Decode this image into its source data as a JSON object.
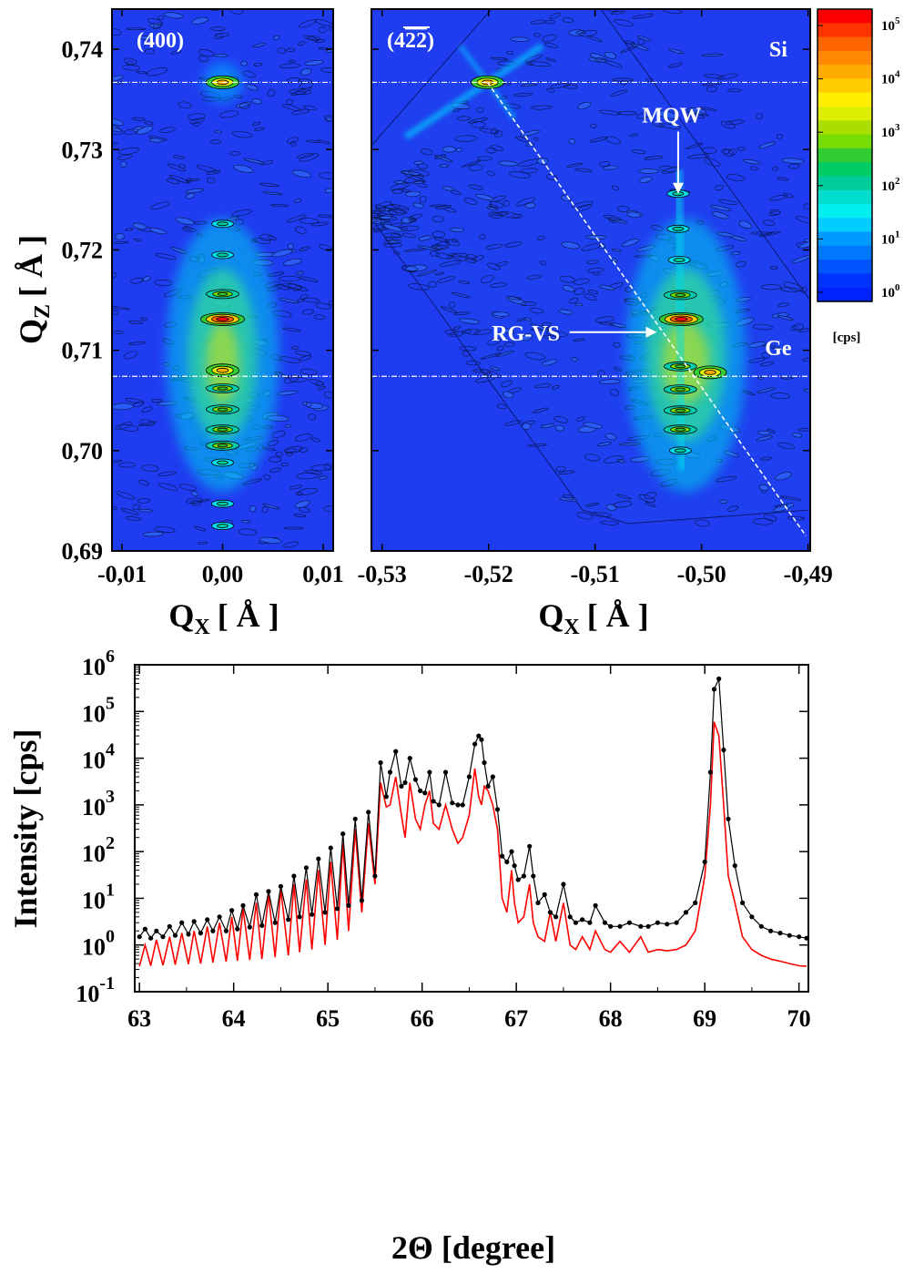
{
  "chart_data": [
    {
      "type": "heatmap",
      "panel_label": "(400)",
      "xlabel": "Q",
      "xlabel_sub": "X",
      "xlabel_unit": "[ Å ]",
      "ylabel": "Q",
      "ylabel_sub": "Z",
      "ylabel_unit": "[ Å ]",
      "xlim": [
        -0.011,
        0.011
      ],
      "ylim": [
        0.69,
        0.744
      ],
      "xticks": [
        "-0,01",
        "0,00",
        "0,01"
      ],
      "xtick_values": [
        -0.01,
        0.0,
        0.01
      ],
      "yticks": [
        "0,69",
        "0,70",
        "0,71",
        "0,72",
        "0,73",
        "0,74"
      ],
      "ytick_values": [
        0.69,
        0.7,
        0.71,
        0.72,
        0.73,
        0.74
      ],
      "reference_lines": [
        {
          "name": "Si",
          "qz": 0.7367
        },
        {
          "name": "Ge",
          "qz": 0.7074
        }
      ],
      "peaks": [
        {
          "qx": 0.0,
          "qz": 0.7367,
          "level": "high"
        },
        {
          "qx": 0.0,
          "qz": 0.7226,
          "level": "low"
        },
        {
          "qx": 0.0,
          "qz": 0.7195,
          "level": "low"
        },
        {
          "qx": 0.0,
          "qz": 0.7156,
          "level": "mid"
        },
        {
          "qx": 0.0,
          "qz": 0.7131,
          "level": "max"
        },
        {
          "qx": 0.0,
          "qz": 0.708,
          "level": "high"
        },
        {
          "qx": 0.0,
          "qz": 0.7062,
          "level": "mid"
        },
        {
          "qx": 0.0,
          "qz": 0.7041,
          "level": "mid"
        },
        {
          "qx": 0.0,
          "qz": 0.7021,
          "level": "mid"
        },
        {
          "qx": 0.0,
          "qz": 0.7005,
          "level": "mid"
        },
        {
          "qx": 0.0,
          "qz": 0.6988,
          "level": "low"
        },
        {
          "qx": 0.0,
          "qz": 0.6947,
          "level": "low"
        },
        {
          "qx": 0.0,
          "qz": 0.6925,
          "level": "low"
        }
      ]
    },
    {
      "type": "heatmap",
      "panel_label": "(422)",
      "panel_label_plain": "(4",
      "panel_label_bar": "22",
      "panel_label_end": ")",
      "xlabel": "Q",
      "xlabel_sub": "X",
      "xlabel_unit": "[ Å ]",
      "xlim": [
        -0.531,
        -0.4898
      ],
      "ylim": [
        0.69,
        0.744
      ],
      "xticks": [
        "-0,53",
        "-0,52",
        "-0,51",
        "-0,50",
        "-0,49"
      ],
      "xtick_values": [
        -0.53,
        -0.52,
        -0.51,
        -0.5,
        -0.49
      ],
      "reference_lines": [
        {
          "name": "Si",
          "qz": 0.7367
        },
        {
          "name": "Ge",
          "qz": 0.7074
        }
      ],
      "relaxation_line": {
        "from": [
          -0.5201,
          0.7367
        ],
        "to": [
          -0.4902,
          0.6915
        ]
      },
      "annotations": [
        {
          "text": "Si",
          "qx": -0.4928,
          "qz": 0.7393
        },
        {
          "text": "Ge",
          "qx": -0.4928,
          "qz": 0.7095
        },
        {
          "text": "MQW",
          "qx": -0.5028,
          "qz": 0.7327,
          "arrow_to": [
            -0.5022,
            0.7256
          ]
        },
        {
          "text": "RG-VS",
          "qx": -0.5165,
          "qz": 0.7117,
          "arrow_to": [
            -0.5042,
            0.7118
          ]
        }
      ],
      "peaks": [
        {
          "qx": -0.5201,
          "qz": 0.7367,
          "level": "high"
        },
        {
          "qx": -0.5022,
          "qz": 0.7256,
          "level": "low"
        },
        {
          "qx": -0.5022,
          "qz": 0.7221,
          "level": "low"
        },
        {
          "qx": -0.5021,
          "qz": 0.719,
          "level": "low"
        },
        {
          "qx": -0.502,
          "qz": 0.7155,
          "level": "mid"
        },
        {
          "qx": -0.5019,
          "qz": 0.7131,
          "level": "max"
        },
        {
          "qx": -0.4992,
          "qz": 0.7078,
          "level": "high"
        },
        {
          "qx": -0.502,
          "qz": 0.7084,
          "level": "mid"
        },
        {
          "qx": -0.502,
          "qz": 0.7061,
          "level": "mid"
        },
        {
          "qx": -0.502,
          "qz": 0.704,
          "level": "mid"
        },
        {
          "qx": -0.502,
          "qz": 0.7021,
          "level": "mid"
        },
        {
          "qx": -0.502,
          "qz": 0.7,
          "level": "low"
        }
      ],
      "colorbar": {
        "scale": "log",
        "unit": "[cps]",
        "ticks": [
          "10",
          "10",
          "10",
          "10",
          "10",
          "10"
        ],
        "exponents": [
          "5",
          "4",
          "3",
          "2",
          "1",
          "0"
        ],
        "colors": [
          "#ff0000",
          "#ff3300",
          "#ff6600",
          "#ff8800",
          "#ffaa00",
          "#ffcc00",
          "#ffee00",
          "#ddee00",
          "#aadd00",
          "#77dd00",
          "#33cc33",
          "#00cc66",
          "#00cc99",
          "#00ddcc",
          "#00eeee",
          "#00ccff",
          "#0099ff",
          "#0077ff",
          "#0055ff",
          "#0033ff",
          "#0022ff"
        ]
      }
    },
    {
      "type": "line",
      "xlabel": "2Θ [degree]",
      "ylabel": "Intensity [cps]",
      "xlim": [
        62.95,
        70.1
      ],
      "ylim": [
        0.1,
        1000000
      ],
      "yscale": "log",
      "xticks": [
        "63",
        "64",
        "65",
        "66",
        "67",
        "68",
        "69",
        "70"
      ],
      "xtick_values": [
        63,
        64,
        65,
        66,
        67,
        68,
        69,
        70
      ],
      "yticks": [
        "10",
        "10",
        "10",
        "10",
        "10",
        "10",
        "10",
        "10"
      ],
      "ytick_exponents": [
        "-1",
        "0",
        "1",
        "2",
        "3",
        "4",
        "5",
        "6"
      ],
      "ytick_values": [
        0.1,
        1,
        10,
        100,
        1000,
        10000,
        100000,
        1000000
      ],
      "series": [
        {
          "style": "measured",
          "color": "#000000",
          "marker": "dot",
          "x": [
            63.0,
            63.06,
            63.12,
            63.18,
            63.25,
            63.32,
            63.38,
            63.45,
            63.52,
            63.58,
            63.65,
            63.72,
            63.78,
            63.85,
            63.92,
            63.98,
            64.04,
            64.1,
            64.17,
            64.24,
            64.3,
            64.37,
            64.44,
            64.5,
            64.58,
            64.64,
            64.7,
            64.77,
            64.83,
            64.9,
            64.97,
            65.03,
            65.1,
            65.16,
            65.22,
            65.29,
            65.36,
            65.43,
            65.5,
            65.56,
            65.62,
            65.66,
            65.72,
            65.78,
            65.82,
            65.87,
            65.93,
            65.98,
            66.03,
            66.08,
            66.12,
            66.18,
            66.25,
            66.32,
            66.38,
            66.43,
            66.5,
            66.56,
            66.6,
            66.63,
            66.66,
            66.7,
            66.75,
            66.8,
            66.85,
            66.9,
            66.95,
            66.98,
            67.02,
            67.08,
            67.14,
            67.18,
            67.23,
            67.3,
            67.36,
            67.42,
            67.5,
            67.57,
            67.63,
            67.7,
            67.78,
            67.84,
            67.94,
            68.0,
            68.1,
            68.2,
            68.32,
            68.4,
            68.5,
            68.6,
            68.7,
            68.8,
            68.9,
            69.0,
            69.06,
            69.1,
            69.15,
            69.2,
            69.25,
            69.32,
            69.4,
            69.5,
            69.6,
            69.7,
            69.8,
            69.9,
            70.0,
            70.08
          ],
          "y": [
            1.5,
            2.2,
            1.4,
            2.0,
            1.5,
            2.5,
            1.6,
            3.0,
            1.7,
            3.2,
            1.8,
            3.5,
            2.0,
            4.0,
            2.0,
            5.5,
            2.2,
            7.0,
            2.4,
            12.0,
            2.6,
            14.0,
            3.0,
            18.0,
            3.5,
            30.0,
            4.0,
            45.0,
            4.5,
            70.0,
            5.0,
            120.0,
            6.0,
            240.0,
            7.0,
            500.0,
            9.0,
            700.0,
            30.0,
            8000.0,
            1500.0,
            5000.0,
            14000.0,
            2500.0,
            3000.0,
            10000.0,
            3500.0,
            2000.0,
            1800.0,
            5000.0,
            1200.0,
            1000.0,
            5000.0,
            1100.0,
            1000.0,
            1000.0,
            4000.0,
            20000.0,
            30000.0,
            25000.0,
            8000.0,
            2500.0,
            4000.0,
            800.0,
            80.0,
            60.0,
            100.0,
            50.0,
            25.0,
            30.0,
            130.0,
            30.0,
            8.0,
            12.0,
            5.0,
            4.0,
            20.0,
            4.0,
            3.0,
            3.5,
            3.0,
            7.0,
            3.0,
            2.5,
            2.5,
            3.0,
            2.5,
            2.5,
            3.0,
            2.8,
            3.0,
            5.0,
            8.0,
            60.0,
            5000.0,
            300000.0,
            500000.0,
            15000.0,
            500.0,
            50.0,
            8.0,
            4.0,
            2.5,
            2.0,
            1.8,
            1.6,
            1.5,
            1.4
          ]
        },
        {
          "style": "simulated",
          "color": "#ff0000",
          "x": [
            63.0,
            63.06,
            63.12,
            63.18,
            63.25,
            63.32,
            63.38,
            63.45,
            63.52,
            63.58,
            63.65,
            63.72,
            63.78,
            63.85,
            63.92,
            63.98,
            64.04,
            64.1,
            64.17,
            64.24,
            64.3,
            64.37,
            64.44,
            64.5,
            64.58,
            64.64,
            64.7,
            64.77,
            64.83,
            64.9,
            64.97,
            65.03,
            65.1,
            65.16,
            65.22,
            65.29,
            65.36,
            65.43,
            65.5,
            65.56,
            65.62,
            65.66,
            65.72,
            65.78,
            65.82,
            65.87,
            65.93,
            65.98,
            66.03,
            66.08,
            66.12,
            66.18,
            66.25,
            66.32,
            66.38,
            66.43,
            66.5,
            66.56,
            66.6,
            66.63,
            66.66,
            66.7,
            66.75,
            66.8,
            66.85,
            66.9,
            66.95,
            66.98,
            67.02,
            67.08,
            67.14,
            67.18,
            67.23,
            67.3,
            67.36,
            67.42,
            67.5,
            67.57,
            67.63,
            67.7,
            67.78,
            67.84,
            67.94,
            68.0,
            68.1,
            68.2,
            68.32,
            68.4,
            68.5,
            68.6,
            68.7,
            68.8,
            68.9,
            69.0,
            69.06,
            69.1,
            69.15,
            69.2,
            69.25,
            69.32,
            69.4,
            69.5,
            69.6,
            69.7,
            69.8,
            69.9,
            70.0,
            70.08
          ],
          "y": [
            0.35,
            1.0,
            0.36,
            1.3,
            0.37,
            1.5,
            0.38,
            1.8,
            0.39,
            2.0,
            0.4,
            2.5,
            0.42,
            3.0,
            0.44,
            4.0,
            0.46,
            6.0,
            0.48,
            8.0,
            0.5,
            12.0,
            0.55,
            16.0,
            0.6,
            20.0,
            0.7,
            25.0,
            0.8,
            40.0,
            1.0,
            60.0,
            1.3,
            150.0,
            2.0,
            300.0,
            5.0,
            400.0,
            20.0,
            3000.0,
            900.0,
            1000.0,
            4000.0,
            600.0,
            200.0,
            3000.0,
            500.0,
            300.0,
            1000.0,
            2000.0,
            400.0,
            300.0,
            1000.0,
            300.0,
            150.0,
            200.0,
            600.0,
            6000.0,
            1500.0,
            1000.0,
            2500.0,
            2000.0,
            1000.0,
            300.0,
            10.0,
            5.0,
            40.0,
            8.0,
            3.0,
            4.0,
            20.0,
            3.0,
            1.5,
            1.2,
            5.0,
            1.2,
            8.0,
            1.0,
            0.8,
            1.5,
            0.8,
            2.0,
            0.8,
            0.7,
            1.2,
            0.7,
            1.5,
            0.7,
            0.8,
            0.75,
            0.8,
            1.0,
            2.0,
            30.0,
            1000.0,
            60000.0,
            30000.0,
            1000.0,
            30.0,
            8.0,
            1.5,
            0.8,
            0.6,
            0.5,
            0.45,
            0.4,
            0.36,
            0.35
          ]
        }
      ]
    }
  ]
}
